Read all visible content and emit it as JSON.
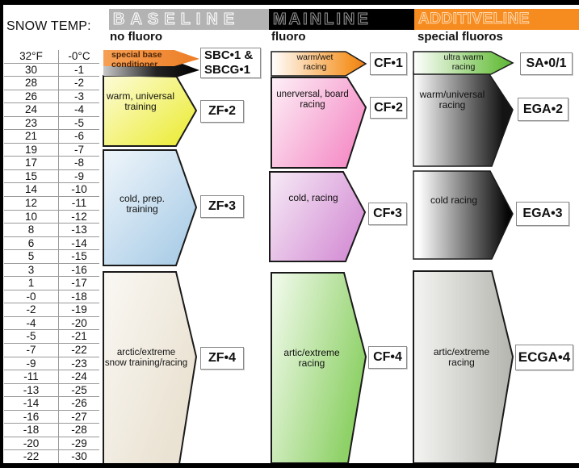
{
  "header": {
    "title": "SNOW TEMP:"
  },
  "columns": [
    {
      "band_label": "BASELINE",
      "band_bg": "#b3b3b3",
      "sub_label": "no fluoro",
      "items": [
        {
          "use_lines": [
            "special base",
            "conditioner"
          ],
          "product_lines": [
            "SBC•1 &",
            "SBCG•1"
          ],
          "fill": "#ef8532"
        },
        {
          "use_lines": [
            "warm, universal",
            "training"
          ],
          "product_lines": [
            "ZF•2"
          ],
          "fill": "#eded45"
        },
        {
          "use_lines": [
            "cold, prep.",
            "training"
          ],
          "product_lines": [
            "ZF•3"
          ],
          "fill": "#aecfe8"
        },
        {
          "use_lines": [
            "arctic/extreme",
            "snow training/racing"
          ],
          "product_lines": [
            "ZF•4"
          ],
          "fill": "#eae2d2"
        }
      ]
    },
    {
      "band_label": "MAINLINE",
      "band_bg": "#000000",
      "sub_label": "fluoro",
      "items": [
        {
          "use_lines": [
            "warm/wet",
            "racing"
          ],
          "product_lines": [
            "CF•1"
          ],
          "fill": "#f59425"
        },
        {
          "use_lines": [
            "unerversal, board",
            "racing"
          ],
          "product_lines": [
            "CF•2"
          ],
          "fill": "#f590c8"
        },
        {
          "use_lines": [
            "cold, racing"
          ],
          "product_lines": [
            "CF•3"
          ],
          "fill": "#d693d6"
        },
        {
          "use_lines": [
            "artic/extreme",
            "racing"
          ],
          "product_lines": [
            "CF•4"
          ],
          "fill": "#8ed167"
        }
      ]
    },
    {
      "band_label": "ADDITIVELINE",
      "band_bg": "#f68b1f",
      "sub_label": "special fluoros",
      "items": [
        {
          "use_lines": [
            "ultra warm",
            "racing"
          ],
          "product_lines": [
            "SA•0/1"
          ],
          "fill": "#72c24a"
        },
        {
          "use_lines": [
            "warm/universal",
            "racing"
          ],
          "product_lines": [
            "EGA•2"
          ],
          "fill": "#141414"
        },
        {
          "use_lines": [
            "cold racing"
          ],
          "product_lines": [
            "EGA•3"
          ],
          "fill": "#0a0a0a"
        },
        {
          "use_lines": [
            "artic/extreme",
            "racing"
          ],
          "product_lines": [
            "ECGA•4"
          ],
          "fill": "#b5b5af"
        }
      ]
    }
  ],
  "temperature": {
    "rows": [
      [
        "32°F",
        "-0°C"
      ],
      [
        "30",
        "-1"
      ],
      [
        "28",
        "-2"
      ],
      [
        "26",
        "-3"
      ],
      [
        "24",
        "-4"
      ],
      [
        "23",
        "-5"
      ],
      [
        "21",
        "-6"
      ],
      [
        "19",
        "-7"
      ],
      [
        "17",
        "-8"
      ],
      [
        "15",
        "-9"
      ],
      [
        "14",
        "-10"
      ],
      [
        "12",
        "-11"
      ],
      [
        "10",
        "-12"
      ],
      [
        "8",
        "-13"
      ],
      [
        "6",
        "-14"
      ],
      [
        "5",
        "-15"
      ],
      [
        "3",
        "-16"
      ],
      [
        "1",
        "-17"
      ],
      [
        "-0",
        "-18"
      ],
      [
        "-2",
        "-19"
      ],
      [
        "-4",
        "-20"
      ],
      [
        "-5",
        "-21"
      ],
      [
        "-7",
        "-22"
      ],
      [
        "-9",
        "-23"
      ],
      [
        "-11",
        "-24"
      ],
      [
        "-13",
        "-25"
      ],
      [
        "-14",
        "-26"
      ],
      [
        "-16",
        "-27"
      ],
      [
        "-18",
        "-28"
      ],
      [
        "-20",
        "-29"
      ],
      [
        "-22",
        "-30"
      ]
    ]
  },
  "chart_data": {
    "type": "table",
    "title": "SNOW TEMP:",
    "temperature_scale": {
      "fahrenheit": [
        "32°F",
        "30",
        "28",
        "26",
        "24",
        "23",
        "21",
        "19",
        "17",
        "15",
        "14",
        "12",
        "10",
        "8",
        "6",
        "5",
        "3",
        "1",
        "-0",
        "-2",
        "-4",
        "-5",
        "-7",
        "-9",
        "-11",
        "-13",
        "-14",
        "-16",
        "-18",
        "-20",
        "-22"
      ],
      "celsius": [
        "-0°C",
        "-1",
        "-2",
        "-3",
        "-4",
        "-5",
        "-6",
        "-7",
        "-8",
        "-9",
        "-10",
        "-11",
        "-12",
        "-13",
        "-14",
        "-15",
        "-16",
        "-17",
        "-18",
        "-19",
        "-20",
        "-21",
        "-22",
        "-23",
        "-24",
        "-25",
        "-26",
        "-27",
        "-28",
        "-29",
        "-30"
      ]
    },
    "series": [
      {
        "line": "BASELINE",
        "subtitle": "no fluoro",
        "products": [
          {
            "name": "SBC•1 & SBCG•1",
            "use": "special base conditioner",
            "temp_range_c": [
              0,
              -2
            ]
          },
          {
            "name": "ZF•2",
            "use": "warm, universal training",
            "temp_range_c": [
              -2,
              -7
            ]
          },
          {
            "name": "ZF•3",
            "use": "cold, prep. training",
            "temp_range_c": [
              -7,
              -16
            ]
          },
          {
            "name": "ZF•4",
            "use": "arctic/extreme snow training/racing",
            "temp_range_c": [
              -16,
              -30
            ]
          }
        ]
      },
      {
        "line": "MAINLINE",
        "subtitle": "fluoro",
        "products": [
          {
            "name": "CF•1",
            "use": "warm/wet racing",
            "temp_range_c": [
              0,
              -2
            ]
          },
          {
            "name": "CF•2",
            "use": "unerversal, board racing",
            "temp_range_c": [
              -2,
              -9
            ]
          },
          {
            "name": "CF•3",
            "use": "cold, racing",
            "temp_range_c": [
              -9,
              -16
            ]
          },
          {
            "name": "CF•4",
            "use": "artic/extreme racing",
            "temp_range_c": [
              -16,
              -30
            ]
          }
        ]
      },
      {
        "line": "ADDITIVELINE",
        "subtitle": "special fluoros",
        "products": [
          {
            "name": "SA•0/1",
            "use": "ultra warm racing",
            "temp_range_c": [
              0,
              -2
            ]
          },
          {
            "name": "EGA•2",
            "use": "warm/universal racing",
            "temp_range_c": [
              -1,
              -9
            ]
          },
          {
            "name": "EGA•3",
            "use": "cold racing",
            "temp_range_c": [
              -9,
              -16
            ]
          },
          {
            "name": "ECGA•4",
            "use": "artic/extreme racing",
            "temp_range_c": [
              -16,
              -30
            ]
          }
        ]
      }
    ]
  }
}
